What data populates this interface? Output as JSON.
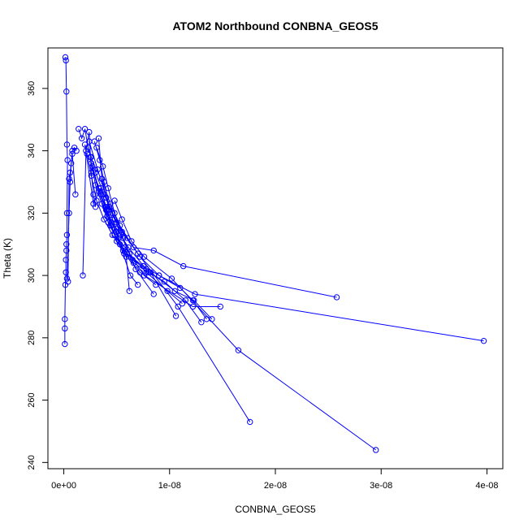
{
  "chart_data": {
    "type": "line",
    "title": "ATOM2 Northbound CONBNA_GEOS5",
    "xlabel": "CONBNA_GEOS5",
    "ylabel": "Theta (K)",
    "xlim": [
      -1.5e-09,
      4.15e-08
    ],
    "ylim": [
      238,
      373
    ],
    "x_ticks": [
      0,
      1e-08,
      2e-08,
      3e-08,
      4e-08
    ],
    "x_tick_labels": [
      "0e+00",
      "1e-08",
      "2e-08",
      "3e-08",
      "4e-08"
    ],
    "y_ticks": [
      240,
      260,
      280,
      300,
      320,
      340,
      360
    ],
    "y_tick_labels": [
      "240",
      "260",
      "280",
      "300",
      "320",
      "340",
      "360"
    ],
    "grid": false,
    "legend": "none",
    "series": [
      {
        "color": "#0000ff",
        "marker": "open-circle",
        "segments": [
          [
            [
              1e-10,
              278
            ],
            [
              1e-10,
              283
            ],
            [
              1e-10,
              286
            ],
            [
              1.5e-10,
              297
            ],
            [
              2e-10,
              301
            ],
            [
              2e-10,
              305
            ],
            [
              2.5e-10,
              308
            ],
            [
              2.5e-10,
              310
            ],
            [
              3e-10,
              313
            ],
            [
              3e-10,
              320
            ],
            [
              3.5e-10,
              337
            ],
            [
              3e-10,
              342
            ],
            [
              2.5e-10,
              359
            ],
            [
              2e-10,
              369
            ],
            [
              1.5e-10,
              370
            ]
          ],
          [
            [
              3e-10,
              299
            ],
            [
              5e-10,
              320
            ],
            [
              6e-10,
              330
            ],
            [
              7e-10,
              336
            ],
            [
              8e-10,
              340
            ],
            [
              1e-09,
              341
            ],
            [
              1.2e-09,
              340
            ]
          ],
          [
            [
              4e-10,
              298
            ],
            [
              5e-10,
              331
            ],
            [
              6e-10,
              333
            ],
            [
              8e-10,
              339
            ],
            [
              1.1e-09,
              326
            ]
          ],
          [
            [
              1.8e-09,
              300
            ],
            [
              2.1e-09,
              340
            ],
            [
              2.4e-09,
              346
            ],
            [
              2.6e-09,
              333
            ],
            [
              2.8e-09,
              326
            ],
            [
              3e-09,
              322
            ]
          ],
          [
            [
              1.4e-09,
              347
            ],
            [
              1.7e-09,
              344
            ],
            [
              2e-09,
              347
            ],
            [
              2.3e-09,
              341
            ],
            [
              2.6e-09,
              338
            ],
            [
              2.9e-09,
              334
            ]
          ],
          [
            [
              2e-09,
              342
            ],
            [
              2.8e-09,
              323
            ],
            [
              3.5e-09,
              328
            ],
            [
              4e-09,
              322
            ],
            [
              4.5e-09,
              316
            ],
            [
              5e-09,
              311
            ],
            [
              6e-09,
              307
            ],
            [
              7.5e-09,
              303
            ],
            [
              9e-09,
              300
            ],
            [
              1.1e-08,
              296
            ],
            [
              1.22e-08,
              292
            ],
            [
              1.35e-08,
              286
            ]
          ],
          [
            [
              3.3e-09,
              344
            ],
            [
              3.6e-09,
              331
            ],
            [
              4e-09,
              325
            ],
            [
              4.3e-09,
              321
            ],
            [
              4.6e-09,
              318
            ],
            [
              5e-09,
              314
            ],
            [
              5.6e-09,
              308
            ],
            [
              6.6e-09,
              304
            ],
            [
              8e-09,
              301
            ],
            [
              9.5e-09,
              298
            ],
            [
              1.15e-08,
              292
            ],
            [
              1.3e-08,
              285
            ]
          ],
          [
            [
              2.9e-09,
              343
            ],
            [
              3.4e-09,
              337
            ],
            [
              3.8e-09,
              330
            ],
            [
              4.3e-09,
              322
            ],
            [
              4.8e-09,
              318
            ],
            [
              5.4e-09,
              313
            ],
            [
              6.2e-09,
              307
            ],
            [
              7.8e-09,
              301
            ],
            [
              9.8e-09,
              295
            ],
            [
              1.12e-08,
              291
            ]
          ],
          [
            [
              2.5e-09,
              338
            ],
            [
              3e-09,
              329
            ],
            [
              3.6e-09,
              323
            ],
            [
              4.2e-09,
              317
            ],
            [
              4.8e-09,
              313
            ],
            [
              5.8e-09,
              309
            ],
            [
              7.6e-09,
              300
            ],
            [
              8.7e-09,
              297
            ]
          ],
          [
            [
              2.7e-09,
              335
            ],
            [
              3.3e-09,
              328
            ],
            [
              3.9e-09,
              322
            ],
            [
              4.4e-09,
              316
            ],
            [
              5.3e-09,
              310
            ],
            [
              6.5e-09,
              305
            ],
            [
              8.2e-09,
              301
            ],
            [
              1.06e-08,
              287
            ]
          ],
          [
            [
              2.2e-09,
              339
            ],
            [
              2.6e-09,
              332
            ],
            [
              3.1e-09,
              324
            ],
            [
              3.8e-09,
              318
            ],
            [
              4.6e-09,
              313
            ],
            [
              5.7e-09,
              307
            ],
            [
              7.2e-09,
              301
            ],
            [
              1.22e-08,
              290
            ],
            [
              1.48e-08,
              290
            ]
          ],
          [
            [
              3.1e-09,
              341
            ],
            [
              3.7e-09,
              335
            ],
            [
              4.2e-09,
              328
            ],
            [
              4.8e-09,
              320
            ],
            [
              5.6e-09,
              312
            ],
            [
              6.8e-09,
              302
            ],
            [
              8.5e-09,
              294
            ]
          ],
          [
            [
              3.5e-09,
              326
            ],
            [
              4.1e-09,
              321
            ],
            [
              4.9e-09,
              314
            ],
            [
              6.3e-09,
              300
            ],
            [
              7e-09,
              297
            ]
          ],
          [
            [
              4e-09,
              321
            ],
            [
              4.5e-09,
              317
            ],
            [
              5.2e-09,
              312
            ],
            [
              5.9e-09,
              306
            ],
            [
              6.2e-09,
              295
            ]
          ],
          [
            [
              3.6e-09,
              331
            ],
            [
              4.4e-09,
              323
            ],
            [
              5.3e-09,
              316
            ],
            [
              6.6e-09,
              309
            ],
            [
              8.5e-09,
              308
            ],
            [
              1.13e-08,
              303
            ],
            [
              2.58e-08,
              293
            ]
          ],
          [
            [
              2.4e-09,
              343
            ],
            [
              3.2e-09,
              334
            ],
            [
              4e-09,
              325
            ],
            [
              5e-09,
              317
            ],
            [
              6e-09,
              312
            ],
            [
              7.2e-09,
              306
            ],
            [
              9e-09,
              300
            ],
            [
              1.24e-08,
              294
            ],
            [
              3.97e-08,
              279
            ]
          ],
          [
            [
              4.8e-09,
              324
            ],
            [
              5.5e-09,
              318
            ],
            [
              6.4e-09,
              311
            ],
            [
              7.6e-09,
              306
            ],
            [
              1.02e-08,
              299
            ],
            [
              1.65e-08,
              276
            ],
            [
              2.95e-08,
              244
            ]
          ],
          [
            [
              3e-09,
              333
            ],
            [
              3.8e-09,
              326
            ],
            [
              4.6e-09,
              320
            ],
            [
              5.5e-09,
              314
            ],
            [
              7e-09,
              307
            ],
            [
              1.08e-08,
              290
            ],
            [
              1.76e-08,
              253
            ]
          ],
          [
            [
              2.6e-09,
              336
            ],
            [
              3.3e-09,
              327
            ],
            [
              4.1e-09,
              319
            ],
            [
              5e-09,
              315
            ],
            [
              6.1e-09,
              309
            ],
            [
              7.8e-09,
              302
            ],
            [
              1.05e-08,
              295
            ],
            [
              1.23e-08,
              292
            ],
            [
              1.4e-08,
              286
            ]
          ]
        ]
      }
    ]
  }
}
